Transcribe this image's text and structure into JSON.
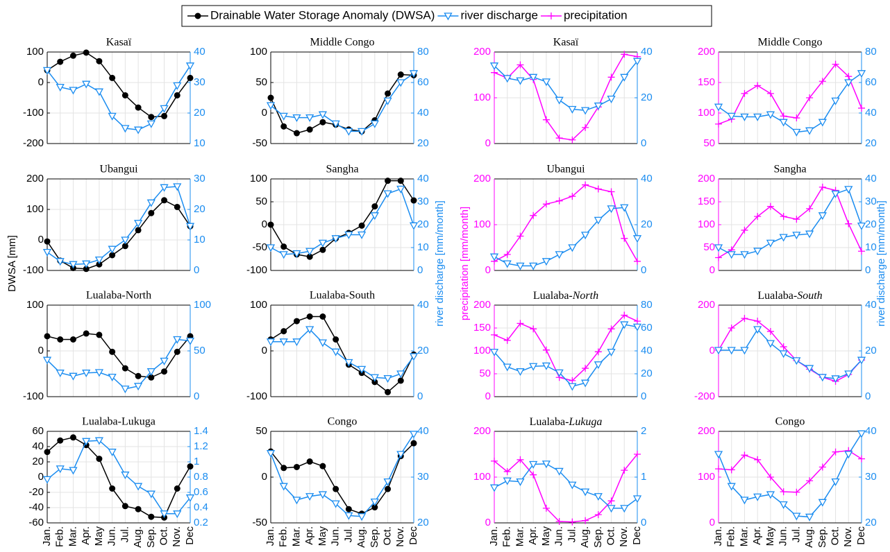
{
  "legend": [
    {
      "name": "Drainable Water Storage Anomaly (DWSA)",
      "color": "#000000",
      "marker": "circle"
    },
    {
      "name": "river discharge",
      "color": "#1a8cf0",
      "marker": "triangle-down"
    },
    {
      "name": "precipitation",
      "color": "#ff00ff",
      "marker": "plus"
    }
  ],
  "axis_labels": {
    "dwsa": "DWSA [mm]",
    "precipitation": "precipitation [mm/month]",
    "discharge": "river discharge [mm/month]"
  },
  "categories": [
    "Jan.",
    "Feb.",
    "Mar.",
    "Apr.",
    "May",
    "Jun.",
    "Jul.",
    "Aug.",
    "Sep.",
    "Oct.",
    "Nov.",
    "Dec"
  ],
  "chart_data": [
    {
      "type": "line",
      "title": "Kasaï",
      "ylim": [
        -200,
        100
      ],
      "yticks": [
        -200,
        -100,
        0,
        100
      ],
      "y2lim": [
        10,
        40
      ],
      "y2ticks": [
        10,
        20,
        30,
        40
      ],
      "grid": true,
      "series": [
        {
          "name": "Drainable Water Storage Anomaly (DWSA)",
          "values": [
            40,
            68,
            88,
            98,
            70,
            15,
            -42,
            -82,
            -113,
            -110,
            -42,
            15
          ]
        },
        {
          "name": "river discharge",
          "axis": "y2",
          "values": [
            34,
            28.5,
            27.5,
            29.5,
            27,
            19,
            15,
            14.5,
            16.5,
            21.5,
            29,
            35.5
          ]
        }
      ]
    },
    {
      "type": "line",
      "title": "Middle Congo",
      "ylim": [
        -50,
        100
      ],
      "yticks": [
        -50,
        0,
        50,
        100
      ],
      "y2lim": [
        20,
        80
      ],
      "y2ticks": [
        20,
        40,
        60,
        80
      ],
      "grid": true,
      "series": [
        {
          "name": "Drainable Water Storage Anomaly (DWSA)",
          "values": [
            25,
            -22,
            -33,
            -27,
            -15,
            -19,
            -27,
            -30,
            -12,
            32,
            63,
            62
          ]
        },
        {
          "name": "river discharge",
          "axis": "y2",
          "values": [
            45,
            38,
            37,
            37,
            39,
            33,
            28,
            28,
            33,
            48,
            60,
            66
          ]
        }
      ]
    },
    {
      "type": "line",
      "title": "Kasaï",
      "ylim": [
        0,
        200
      ],
      "yticks": [
        0,
        100,
        200
      ],
      "y2lim": [
        0,
        40
      ],
      "y2ticks": [
        0,
        20,
        40
      ],
      "grid": true,
      "series": [
        {
          "name": "precipitation",
          "values": [
            155,
            143,
            172,
            140,
            52,
            12,
            8,
            35,
            80,
            145,
            195,
            190
          ]
        },
        {
          "name": "river discharge",
          "axis": "y2",
          "values": [
            34,
            28.5,
            27.5,
            29,
            27,
            19,
            15,
            14.5,
            16.5,
            19.5,
            29,
            36
          ]
        }
      ]
    },
    {
      "type": "line",
      "title": "Middle Congo",
      "ylim": [
        50,
        200
      ],
      "yticks": [
        50,
        100,
        150,
        200
      ],
      "y2lim": [
        20,
        80
      ],
      "y2ticks": [
        20,
        40,
        60,
        80
      ],
      "grid": true,
      "series": [
        {
          "name": "precipitation",
          "values": [
            82,
            90,
            132,
            145,
            132,
            95,
            92,
            125,
            152,
            180,
            160,
            108
          ]
        },
        {
          "name": "river discharge",
          "axis": "y2",
          "values": [
            44,
            38,
            37.5,
            37.5,
            39,
            34,
            27.5,
            28.5,
            34,
            48,
            60,
            66
          ]
        }
      ]
    },
    {
      "type": "line",
      "title": "Ubangui",
      "ylim": [
        -100,
        200
      ],
      "yticks": [
        -100,
        0,
        100,
        200
      ],
      "y2lim": [
        0,
        30
      ],
      "y2ticks": [
        0,
        10,
        20,
        30
      ],
      "grid": true,
      "series": [
        {
          "name": "Drainable Water Storage Anomaly (DWSA)",
          "values": [
            -5,
            -68,
            -92,
            -95,
            -80,
            -50,
            -20,
            32,
            88,
            130,
            108,
            45
          ]
        },
        {
          "name": "river discharge",
          "axis": "y2",
          "values": [
            6,
            3,
            2,
            2.2,
            3.5,
            7,
            10,
            15.5,
            22.2,
            27.2,
            27.5,
            14.5
          ]
        }
      ]
    },
    {
      "type": "line",
      "title": "Sangha",
      "ylim": [
        -100,
        100
      ],
      "yticks": [
        -100,
        -50,
        0,
        50,
        100
      ],
      "y2lim": [
        0,
        40
      ],
      "y2ticks": [
        0,
        10,
        20,
        30,
        40
      ],
      "grid": true,
      "series": [
        {
          "name": "Drainable Water Storage Anomaly (DWSA)",
          "values": [
            0,
            -48,
            -65,
            -70,
            -55,
            -30,
            -18,
            -2,
            40,
            96,
            96,
            53
          ]
        },
        {
          "name": "river discharge",
          "axis": "y2",
          "values": [
            10,
            7,
            7.4,
            8.4,
            12,
            14,
            15.6,
            15.6,
            24,
            33.6,
            35.6,
            19.6
          ]
        }
      ]
    },
    {
      "type": "line",
      "title": "Ubangui",
      "ylim": [
        0,
        200
      ],
      "yticks": [
        0,
        100,
        200
      ],
      "y2lim": [
        0,
        40
      ],
      "y2ticks": [
        0,
        20,
        40
      ],
      "grid": true,
      "series": [
        {
          "name": "precipitation",
          "values": [
            20,
            35,
            75,
            120,
            145,
            152,
            162,
            187,
            178,
            172,
            70,
            20
          ]
        },
        {
          "name": "river discharge",
          "axis": "y2",
          "values": [
            6,
            3,
            2,
            2,
            4,
            7,
            10,
            15.5,
            22,
            27,
            27.5,
            14
          ]
        }
      ]
    },
    {
      "type": "line",
      "title": "Sangha",
      "ylim": [
        0,
        200
      ],
      "yticks": [
        0,
        50,
        100,
        150,
        200
      ],
      "y2lim": [
        0,
        40
      ],
      "y2ticks": [
        0,
        10,
        20,
        30,
        40
      ],
      "grid": true,
      "series": [
        {
          "name": "precipitation",
          "values": [
            28,
            45,
            88,
            118,
            140,
            118,
            112,
            135,
            182,
            175,
            102,
            42
          ]
        },
        {
          "name": "river discharge",
          "axis": "y2",
          "values": [
            10,
            7,
            7,
            8.5,
            12,
            14.5,
            15.5,
            16,
            24,
            33.5,
            35.5,
            19.5
          ]
        }
      ]
    },
    {
      "type": "line",
      "title": "Lualaba-North",
      "ylim": [
        -100,
        100
      ],
      "yticks": [
        -100,
        0,
        100
      ],
      "y2lim": [
        0,
        100
      ],
      "y2ticks": [
        0,
        50,
        100
      ],
      "grid": true,
      "series": [
        {
          "name": "Drainable Water Storage Anomaly (DWSA)",
          "values": [
            32,
            25,
            25,
            38,
            35,
            -2,
            -38,
            -55,
            -58,
            -45,
            -2,
            32
          ]
        },
        {
          "name": "river discharge",
          "axis": "y2",
          "values": [
            40,
            26,
            22.5,
            26,
            26.5,
            21.5,
            8.5,
            11.5,
            27.5,
            39,
            62.5,
            61
          ]
        }
      ]
    },
    {
      "type": "line",
      "title": "Lualaba-South",
      "ylim": [
        -100,
        100
      ],
      "yticks": [
        -100,
        0,
        100
      ],
      "y2lim": [
        0,
        40
      ],
      "y2ticks": [
        0,
        20,
        40
      ],
      "grid": true,
      "series": [
        {
          "name": "Drainable Water Storage Anomaly (DWSA)",
          "values": [
            25,
            43,
            65,
            75,
            75,
            25,
            -30,
            -48,
            -68,
            -90,
            -65,
            -8
          ]
        },
        {
          "name": "river discharge",
          "axis": "y2",
          "values": [
            24,
            24,
            24,
            29.4,
            23.6,
            19.6,
            15,
            12,
            8.4,
            8,
            10,
            17.6
          ]
        }
      ]
    },
    {
      "type": "line",
      "title": [
        "Lualaba-",
        "North"
      ],
      "ylim": [
        0,
        200
      ],
      "yticks": [
        0,
        50,
        100,
        150,
        200
      ],
      "y2lim": [
        0,
        80
      ],
      "y2ticks": [
        0,
        20,
        40,
        60,
        80
      ],
      "grid": true,
      "series": [
        {
          "name": "precipitation",
          "values": [
            135,
            123,
            160,
            148,
            102,
            42,
            35,
            62,
            98,
            148,
            178,
            165
          ]
        },
        {
          "name": "river discharge",
          "axis": "y2",
          "values": [
            39,
            26,
            22,
            26.5,
            27,
            21,
            9,
            12,
            28,
            39,
            63,
            61
          ]
        }
      ]
    },
    {
      "type": "line",
      "title": [
        "Lualaba-",
        "South"
      ],
      "ylim": [
        -200,
        200
      ],
      "yticks": [
        -200,
        0,
        200
      ],
      "y2lim": [
        0,
        40
      ],
      "y2ticks": [
        0,
        20,
        40
      ],
      "grid": true,
      "series": [
        {
          "name": "precipitation",
          "values": [
            3,
            100,
            142,
            130,
            85,
            18,
            -42,
            -80,
            -115,
            -133,
            -103,
            -40
          ]
        },
        {
          "name": "river discharge",
          "axis": "y2",
          "values": [
            20.3,
            20.3,
            20.3,
            29.4,
            23.3,
            18.8,
            15.8,
            12.4,
            8.5,
            7.9,
            10,
            16
          ]
        }
      ]
    },
    {
      "type": "line",
      "title": "Lualaba-Lukuga",
      "ylim": [
        -60,
        60
      ],
      "yticks": [
        -60,
        -40,
        -20,
        0,
        20,
        40,
        60
      ],
      "y2lim": [
        0.2,
        1.4
      ],
      "y2ticks": [
        0.2,
        0.4,
        0.6,
        0.8,
        1,
        1.2,
        1.4
      ],
      "grid": true,
      "series": [
        {
          "name": "Drainable Water Storage Anomaly (DWSA)",
          "values": [
            33,
            48,
            52,
            42,
            24,
            -15,
            -38,
            -42,
            -52,
            -53,
            -15,
            14
          ]
        },
        {
          "name": "river discharge",
          "axis": "y2",
          "values": [
            0.77,
            0.91,
            0.89,
            1.27,
            1.28,
            1.13,
            0.83,
            0.68,
            0.58,
            0.32,
            0.32,
            0.53
          ]
        }
      ]
    },
    {
      "type": "line",
      "title": "Congo",
      "ylim": [
        -50,
        50
      ],
      "yticks": [
        -50,
        0,
        50
      ],
      "y2lim": [
        20,
        40
      ],
      "y2ticks": [
        20,
        30,
        40
      ],
      "grid": true,
      "series": [
        {
          "name": "Drainable Water Storage Anomaly (DWSA)",
          "values": [
            28,
            10,
            11,
            17,
            12,
            -13,
            -35,
            -40,
            -33,
            -13,
            23,
            37
          ]
        },
        {
          "name": "river discharge",
          "axis": "y2",
          "values": [
            35.2,
            28,
            25,
            25.8,
            26.2,
            24.2,
            21.6,
            21.4,
            24.6,
            29,
            35,
            39.4
          ]
        }
      ]
    },
    {
      "type": "line",
      "title": [
        "Lualaba-",
        "Lukuga"
      ],
      "ylim": [
        0,
        200
      ],
      "yticks": [
        0,
        100,
        200
      ],
      "y2lim": [
        0,
        2
      ],
      "y2ticks": [
        0,
        1,
        2
      ],
      "grid": true,
      "series": [
        {
          "name": "precipitation",
          "values": [
            135,
            112,
            138,
            105,
            32,
            3,
            2,
            5,
            18,
            48,
            115,
            150
          ]
        },
        {
          "name": "river discharge",
          "axis": "y2",
          "values": [
            0.77,
            0.92,
            0.9,
            1.28,
            1.29,
            1.13,
            0.83,
            0.68,
            0.58,
            0.32,
            0.32,
            0.53
          ]
        }
      ]
    },
    {
      "type": "line",
      "title": "Congo",
      "ylim": [
        0,
        200
      ],
      "yticks": [
        0,
        100,
        200
      ],
      "y2lim": [
        20,
        40
      ],
      "y2ticks": [
        20,
        30,
        40
      ],
      "grid": true,
      "series": [
        {
          "name": "precipitation",
          "values": [
            118,
            116,
            148,
            138,
            100,
            68,
            67,
            92,
            122,
            155,
            158,
            140
          ]
        },
        {
          "name": "river discharge",
          "axis": "y2",
          "values": [
            35,
            28,
            25,
            25.7,
            26.2,
            24,
            21.5,
            21.3,
            24.5,
            29,
            35,
            39.5
          ]
        }
      ]
    }
  ]
}
